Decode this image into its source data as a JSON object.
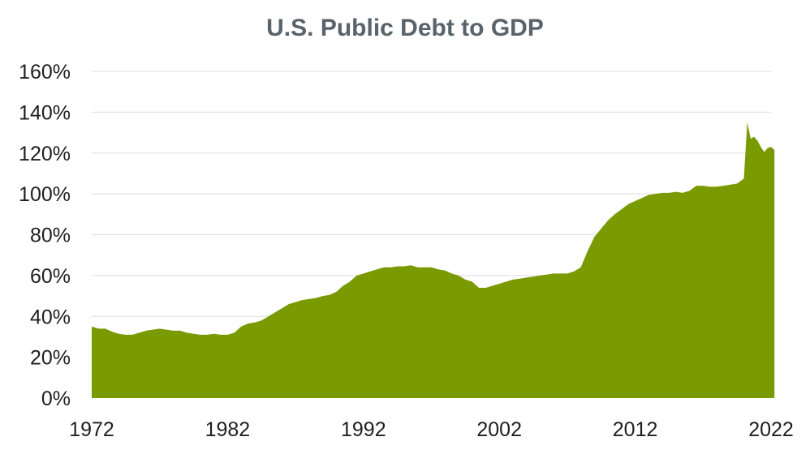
{
  "chart_data": {
    "type": "area",
    "title": "U.S. Public Debt to GDP",
    "xlabel": "",
    "ylabel": "",
    "color": "#7a9a01",
    "grid": true,
    "xlim": [
      1972,
      2022.5
    ],
    "ylim": [
      0,
      160
    ],
    "x_ticks": [
      "1972",
      "1982",
      "1992",
      "2002",
      "2012",
      "2022"
    ],
    "y_ticks": [
      "0%",
      "20%",
      "40%",
      "60%",
      "80%",
      "100%",
      "120%",
      "140%",
      "160%"
    ],
    "x": [
      1972.0,
      1972.5,
      1973.0,
      1973.5,
      1974.0,
      1974.5,
      1975.0,
      1975.5,
      1976.0,
      1976.5,
      1977.0,
      1977.5,
      1978.0,
      1978.5,
      1979.0,
      1979.5,
      1980.0,
      1980.5,
      1981.0,
      1981.5,
      1982.0,
      1982.5,
      1983.0,
      1983.5,
      1984.0,
      1984.5,
      1985.0,
      1985.5,
      1986.0,
      1986.5,
      1987.0,
      1987.5,
      1988.0,
      1988.5,
      1989.0,
      1989.5,
      1990.0,
      1990.5,
      1991.0,
      1991.5,
      1992.0,
      1992.5,
      1993.0,
      1993.5,
      1994.0,
      1994.5,
      1995.0,
      1995.5,
      1996.0,
      1996.5,
      1997.0,
      1997.5,
      1998.0,
      1998.5,
      1999.0,
      1999.5,
      2000.0,
      2000.5,
      2001.0,
      2001.5,
      2002.0,
      2002.5,
      2003.0,
      2003.5,
      2004.0,
      2004.5,
      2005.0,
      2005.5,
      2006.0,
      2006.5,
      2007.0,
      2007.5,
      2008.0,
      2008.5,
      2009.0,
      2009.5,
      2010.0,
      2010.5,
      2011.0,
      2011.5,
      2012.0,
      2012.5,
      2013.0,
      2013.5,
      2014.0,
      2014.5,
      2015.0,
      2015.5,
      2016.0,
      2016.5,
      2017.0,
      2017.5,
      2018.0,
      2018.5,
      2019.0,
      2019.5,
      2020.0,
      2020.25,
      2020.5,
      2020.75,
      2021.0,
      2021.25,
      2021.5,
      2021.75,
      2022.0,
      2022.25
    ],
    "values": [
      35,
      34,
      34,
      32.5,
      31.5,
      31,
      31,
      32,
      33,
      33.5,
      34,
      33.5,
      33,
      33,
      32,
      31.5,
      31,
      31,
      31.5,
      31,
      31,
      32,
      35,
      36.5,
      37,
      38,
      40,
      42,
      44,
      46,
      47,
      48,
      48.5,
      49,
      50,
      50.5,
      52,
      55,
      57,
      60,
      61,
      62,
      63,
      64,
      64,
      64.5,
      64.5,
      65,
      64,
      64,
      64,
      63,
      62.5,
      61,
      60,
      58,
      57,
      54,
      54,
      55,
      56,
      57,
      58,
      58.5,
      59,
      59.5,
      60,
      60.5,
      61,
      61,
      61,
      62,
      64,
      72,
      79,
      83,
      87,
      90,
      92.5,
      95,
      96.5,
      98,
      99.5,
      100,
      100.5,
      100.5,
      101,
      100.5,
      101.5,
      104,
      104,
      103.5,
      103.5,
      104,
      104.5,
      105,
      107.5,
      135,
      127,
      128,
      126,
      123,
      120.5,
      122.5,
      123,
      121.5
    ]
  }
}
